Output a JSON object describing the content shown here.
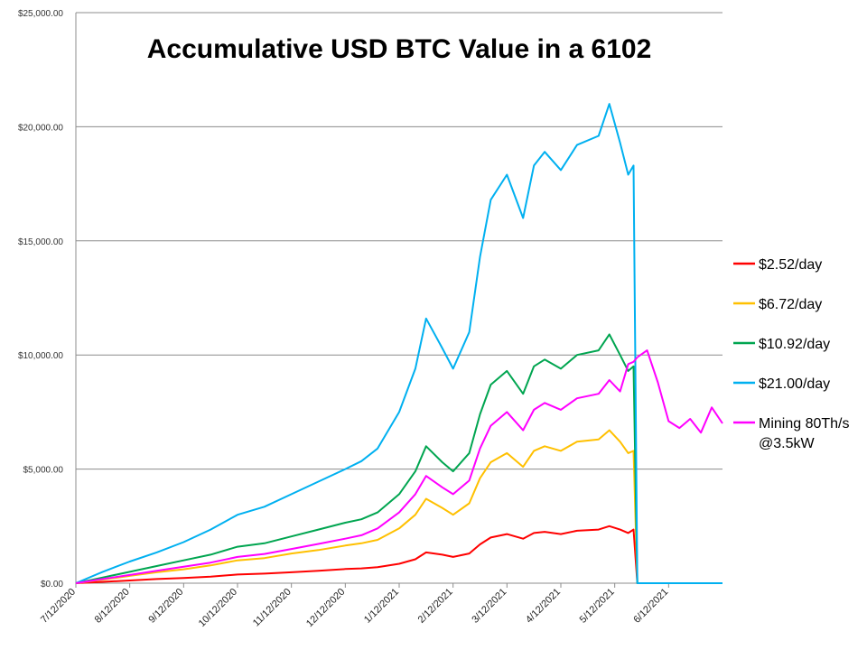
{
  "chart_data": {
    "type": "line",
    "title": "Accumulative USD BTC Value in a 6102",
    "xlabel": "",
    "ylabel": "",
    "ylim": [
      0,
      25000
    ],
    "yticks": [
      0,
      5000,
      10000,
      15000,
      20000,
      25000
    ],
    "ytick_labels": [
      "$0.00",
      "$5,000.00",
      "$10,000.00",
      "$15,000.00",
      "$20,000.00",
      "$25,000.00"
    ],
    "xtick_labels": [
      "7/12/2020",
      "8/12/2020",
      "9/12/2020",
      "10/12/2020",
      "11/12/2020",
      "12/12/2020",
      "1/12/2021",
      "2/12/2021",
      "3/12/2021",
      "4/12/2021",
      "5/12/2021",
      "6/12/2021"
    ],
    "xlim_months": [
      0,
      12
    ],
    "grid": true,
    "legend_position": "right",
    "x_months": [
      0,
      0.5,
      1,
      1.5,
      2,
      2.5,
      3,
      3.5,
      4,
      4.5,
      5,
      5.3,
      5.6,
      6,
      6.3,
      6.5,
      6.8,
      7,
      7.3,
      7.5,
      7.7,
      8,
      8.3,
      8.5,
      8.7,
      9,
      9.3,
      9.7,
      9.9,
      10.1,
      10.25,
      10.35,
      10.42
    ],
    "series": [
      {
        "name": "$2.52/day",
        "color": "#ff0000",
        "values": [
          0,
          60,
          120,
          180,
          230,
          290,
          380,
          420,
          480,
          540,
          620,
          650,
          700,
          850,
          1050,
          1350,
          1250,
          1150,
          1300,
          1700,
          2000,
          2150,
          1950,
          2200,
          2250,
          2150,
          2300,
          2350,
          2500,
          2350,
          2200,
          2350,
          0
        ]
      },
      {
        "name": "$6.72/day",
        "color": "#ffc000",
        "values": [
          0,
          160,
          320,
          480,
          610,
          780,
          1000,
          1100,
          1300,
          1450,
          1650,
          1750,
          1900,
          2400,
          3000,
          3700,
          3300,
          3000,
          3500,
          4600,
          5300,
          5700,
          5100,
          5800,
          6000,
          5800,
          6200,
          6300,
          6700,
          6200,
          5700,
          5800,
          0
        ]
      },
      {
        "name": "$10.92/day",
        "color": "#00a550",
        "values": [
          0,
          250,
          500,
          750,
          1000,
          1250,
          1600,
          1750,
          2050,
          2350,
          2650,
          2800,
          3100,
          3900,
          4900,
          6000,
          5300,
          4900,
          5700,
          7400,
          8700,
          9300,
          8300,
          9500,
          9800,
          9400,
          10000,
          10200,
          10900,
          10000,
          9300,
          9500,
          0
        ]
      },
      {
        "name": "$21.00/day",
        "color": "#00b0f0",
        "values": [
          0,
          500,
          950,
          1350,
          1800,
          2350,
          3000,
          3350,
          3900,
          4450,
          5000,
          5350,
          5900,
          7500,
          9400,
          11600,
          10300,
          9400,
          11000,
          14300,
          16800,
          17900,
          16000,
          18300,
          18900,
          18100,
          19200,
          19600,
          21000,
          19300,
          17900,
          18300,
          0
        ]
      },
      {
        "name": "Mining 80Th/s\n@3.5kW",
        "color": "#ff00ff",
        "values": [
          0,
          180,
          360,
          540,
          720,
          900,
          1150,
          1280,
          1500,
          1720,
          1950,
          2100,
          2400,
          3100,
          3900,
          4700,
          4200,
          3900,
          4500,
          5900,
          6900,
          7500,
          6700,
          7600,
          7900,
          7600,
          8100,
          8300,
          8900,
          8400,
          9600,
          9700,
          9900
        ]
      },
      {
        "name": "Mining 80Th/s\n@3.5kW",
        "color": "#ff00ff",
        "continuation": true,
        "x_months": [
          10.42,
          10.6,
          10.8,
          11.0,
          11.2,
          11.4,
          11.6,
          11.8,
          12.0
        ],
        "values": [
          9900,
          10200,
          8800,
          7100,
          6800,
          7200,
          6600,
          7700,
          7000
        ]
      }
    ]
  }
}
